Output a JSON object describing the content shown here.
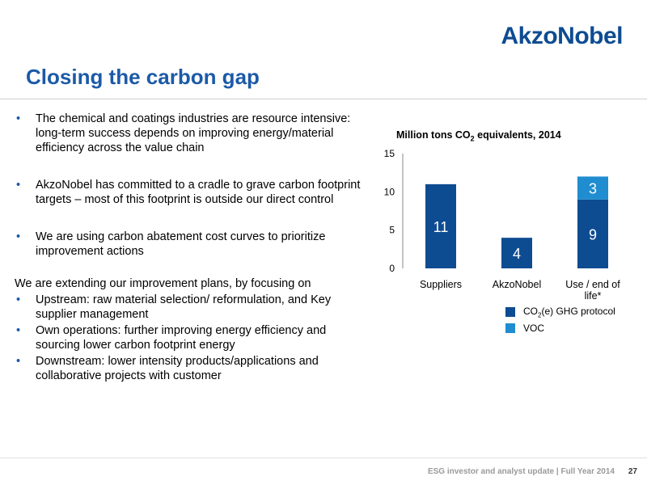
{
  "logo": "AkzoNobel",
  "title": "Closing the carbon gap",
  "bullets_top": [
    "The chemical and coatings industries are resource intensive: long-term success depends on improving energy/material efficiency across the value chain",
    "AkzoNobel has committed to a cradle to grave carbon footprint targets – most of this footprint is outside our direct control",
    "We are using carbon abatement cost curves to prioritize improvement actions"
  ],
  "intro": "We are extending our improvement plans, by focusing on",
  "bullets_bottom": [
    "Upstream: raw material selection/ reformulation, and Key supplier management",
    "Own operations: further improving energy efficiency and sourcing lower carbon footprint energy",
    "Downstream: lower intensity products/applications and collaborative projects with customer"
  ],
  "bullet_char": "•",
  "chart_data": {
    "type": "bar",
    "title_prefix": "Million tons CO",
    "title_sub": "2",
    "title_suffix": " equivalents, 2014",
    "categories": [
      "Suppliers",
      "AkzoNobel",
      "Use / end of life*"
    ],
    "category_lines": [
      [
        "Suppliers"
      ],
      [
        "AkzoNobel"
      ],
      [
        "Use / end of",
        "life*"
      ]
    ],
    "series": [
      {
        "name": "CO2(e) GHG protocol",
        "values": [
          11,
          4,
          9
        ],
        "color": "#0e4c92"
      },
      {
        "name": "VOC",
        "values": [
          0,
          0,
          3
        ],
        "color": "#1f8dd0"
      }
    ],
    "stacked": true,
    "ylim": [
      0,
      15
    ],
    "yticks": [
      0,
      5,
      10,
      15
    ],
    "legend_placement": "bottom-right"
  },
  "legend": {
    "series1_prefix": "CO",
    "series1_sub": "2",
    "series1_suffix": "(e) GHG protocol",
    "series2": "VOC"
  },
  "footer": "ESG investor and analyst update | Full Year 2014",
  "page_number": "27"
}
